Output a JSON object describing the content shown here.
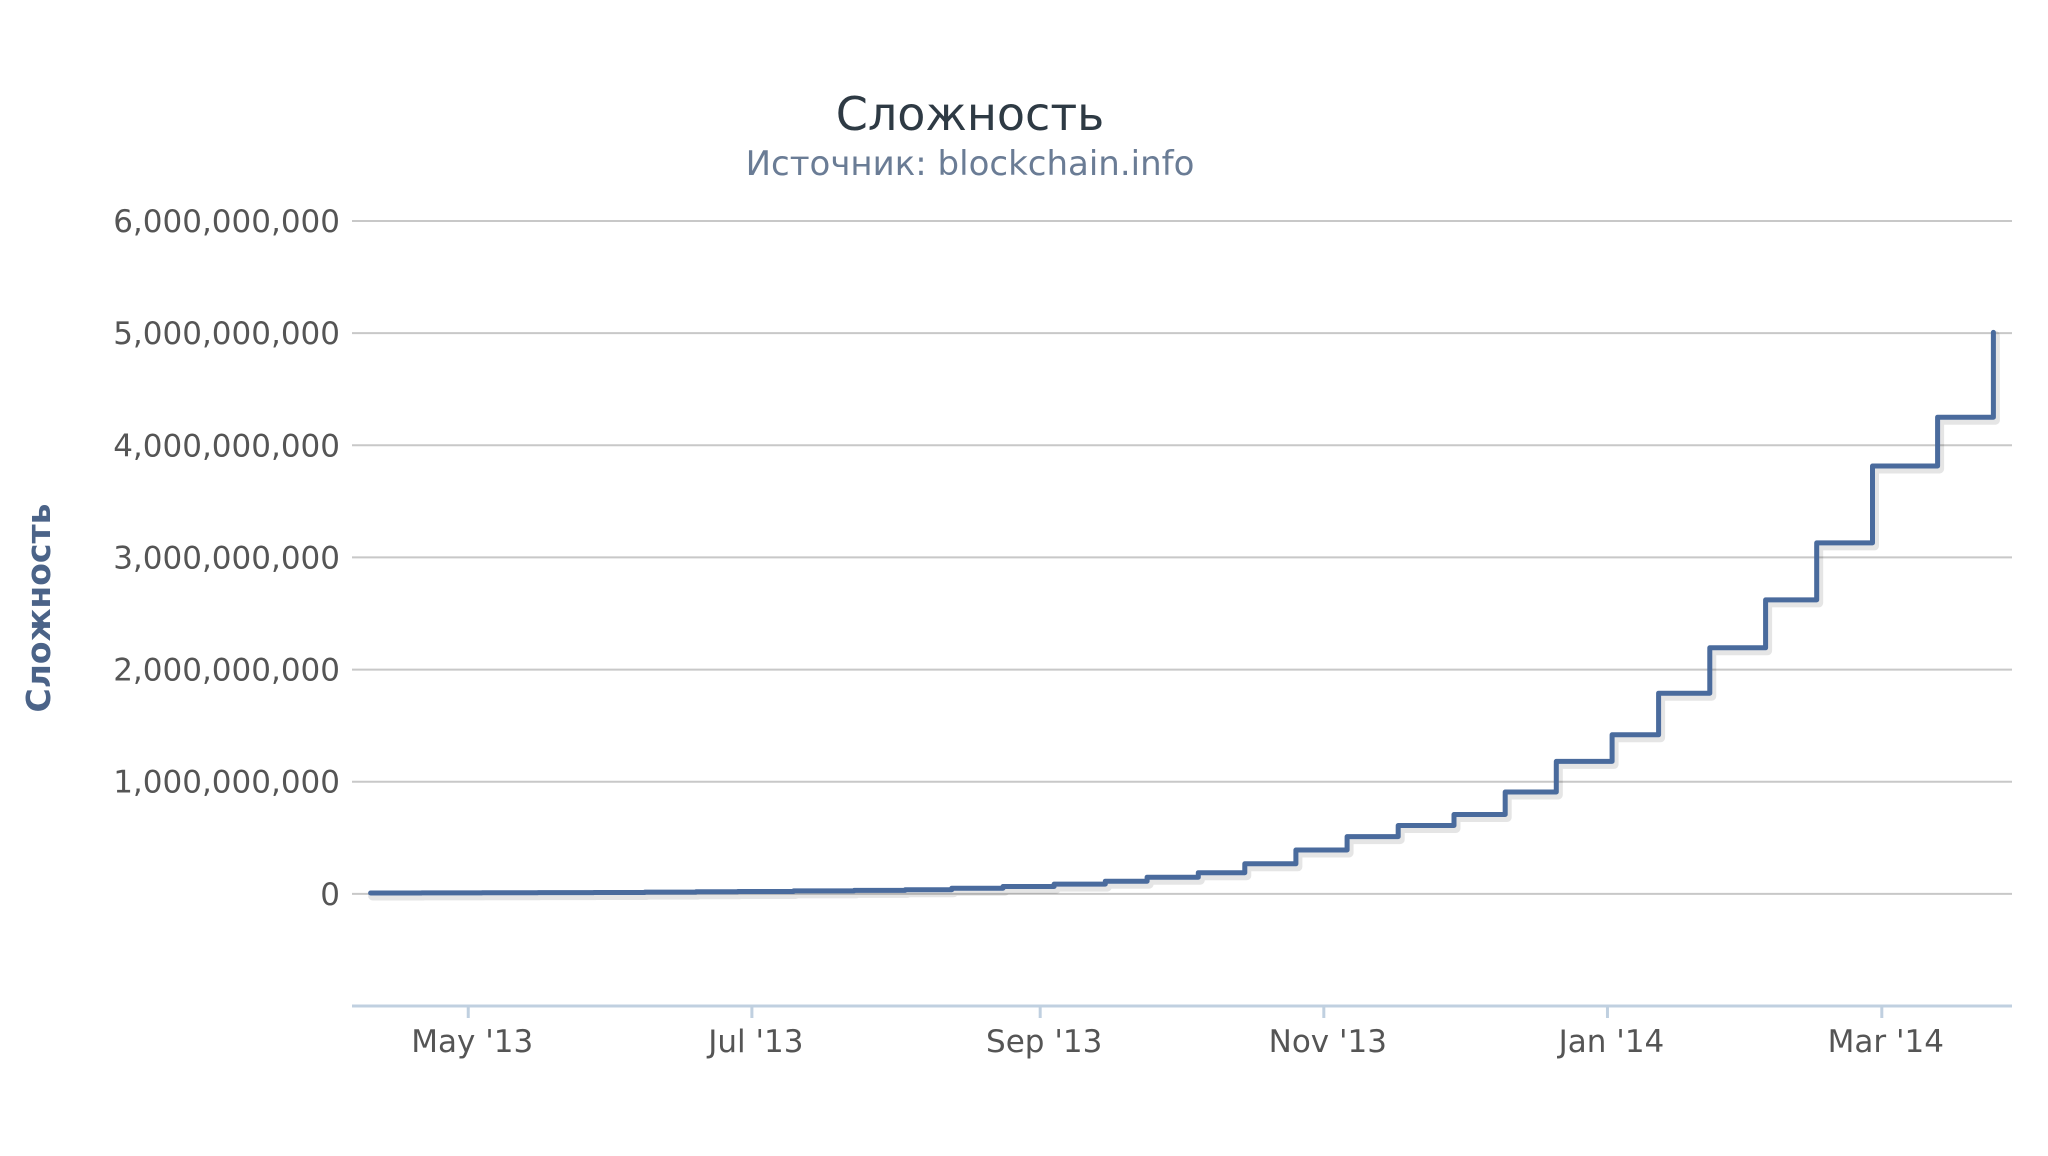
{
  "colors": {
    "series": "#4a6b9d"
  },
  "chart_data": {
    "type": "line",
    "title": "Сложность",
    "subtitle": "Источник: blockchain.info",
    "ylabel": "Сложность",
    "xlabel": "",
    "ylim": [
      -1000000000,
      6000000000
    ],
    "y_ticks": [
      {
        "value": 0,
        "label": "0"
      },
      {
        "value": 1000000000,
        "label": "1,000,000,000"
      },
      {
        "value": 2000000000,
        "label": "2,000,000,000"
      },
      {
        "value": 3000000000,
        "label": "3,000,000,000"
      },
      {
        "value": 4000000000,
        "label": "4,000,000,000"
      },
      {
        "value": 5000000000,
        "label": "5,000,000,000"
      },
      {
        "value": 6000000000,
        "label": "6,000,000,000"
      }
    ],
    "xlim": [
      "2013-04-06",
      "2014-03-29"
    ],
    "x_ticks": [
      {
        "date": "2013-05-01",
        "label": "May '13"
      },
      {
        "date": "2013-07-01",
        "label": "Jul '13"
      },
      {
        "date": "2013-09-01",
        "label": "Sep '13"
      },
      {
        "date": "2013-11-01",
        "label": "Nov '13"
      },
      {
        "date": "2014-01-01",
        "label": "Jan '14"
      },
      {
        "date": "2014-03-01",
        "label": "Mar '14"
      }
    ],
    "grid": true,
    "legend": false,
    "series": [
      {
        "step": true,
        "points": [
          [
            "2013-04-10",
            7670000
          ],
          [
            "2013-04-21",
            8970000
          ],
          [
            "2013-05-04",
            10080000
          ],
          [
            "2013-05-16",
            11190000
          ],
          [
            "2013-05-28",
            12150000
          ],
          [
            "2013-06-08",
            15600000
          ],
          [
            "2013-06-19",
            19340000
          ],
          [
            "2013-06-28",
            21340000
          ],
          [
            "2013-07-10",
            26160000
          ],
          [
            "2013-07-23",
            31260000
          ],
          [
            "2013-08-03",
            37390000
          ],
          [
            "2013-08-13",
            50810000
          ],
          [
            "2013-08-24",
            65750000
          ],
          [
            "2013-09-04",
            86930000
          ],
          [
            "2013-09-15",
            112630000
          ],
          [
            "2013-09-24",
            148820000
          ],
          [
            "2013-10-05",
            189000000
          ],
          [
            "2013-10-15",
            267731249
          ],
          [
            "2013-10-26",
            390928788
          ],
          [
            "2013-11-06",
            510929738
          ],
          [
            "2013-11-17",
            609482680
          ],
          [
            "2013-11-29",
            707408283
          ],
          [
            "2013-12-10",
            908350862
          ],
          [
            "2013-12-21",
            1180923195
          ],
          [
            "2014-01-02",
            1418481395
          ],
          [
            "2014-01-12",
            1789546951
          ],
          [
            "2014-01-23",
            2193847870
          ],
          [
            "2014-02-04",
            2621404453
          ],
          [
            "2014-02-15",
            3129573175
          ],
          [
            "2014-02-27",
            3815723799
          ],
          [
            "2014-03-13",
            4250217920
          ],
          [
            "2014-03-25",
            5006860589
          ]
        ]
      }
    ]
  }
}
